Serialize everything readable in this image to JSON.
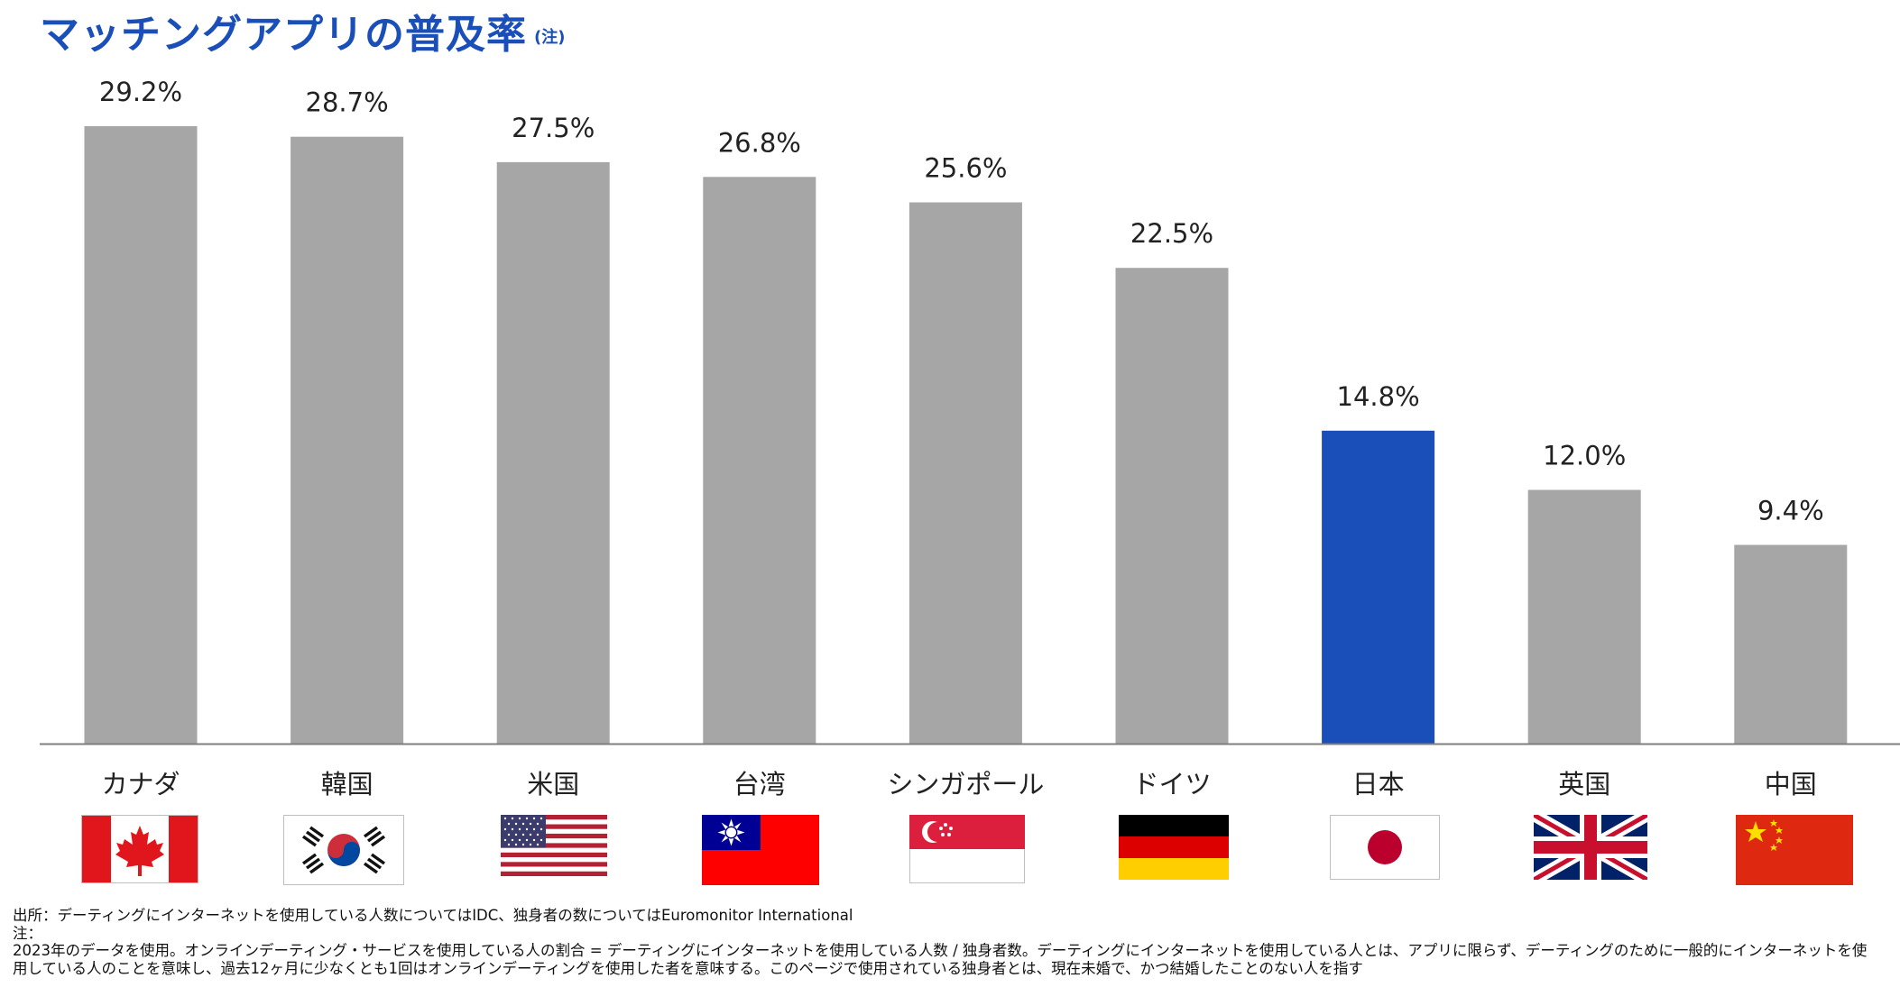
{
  "title": "マッチングアプリの普及率",
  "title_note": "(注)",
  "highlight_color": "#1a4fba",
  "bar_color": "#a6a6a6",
  "chart_data": {
    "type": "bar",
    "title": "マッチングアプリの普及率",
    "categories": [
      "カナダ",
      "韓国",
      "米国",
      "台湾",
      "シンガポール",
      "ドイツ",
      "日本",
      "英国",
      "中国"
    ],
    "values": [
      29.2,
      28.7,
      27.5,
      26.8,
      25.6,
      22.5,
      14.8,
      12.0,
      9.4
    ],
    "value_labels": [
      "29.2%",
      "28.7%",
      "27.5%",
      "26.8%",
      "25.6%",
      "22.5%",
      "14.8%",
      "12.0%",
      "9.4%"
    ],
    "highlight_category": "日本",
    "ylim": [
      0,
      29.2
    ],
    "grid": false,
    "xlabel": "",
    "ylabel": ""
  },
  "flags": [
    {
      "country": "カナダ",
      "icon": "canada-flag-icon"
    },
    {
      "country": "韓国",
      "icon": "south-korea-flag-icon"
    },
    {
      "country": "米国",
      "icon": "usa-flag-icon"
    },
    {
      "country": "台湾",
      "icon": "taiwan-flag-icon"
    },
    {
      "country": "シンガポール",
      "icon": "singapore-flag-icon"
    },
    {
      "country": "ドイツ",
      "icon": "germany-flag-icon"
    },
    {
      "country": "日本",
      "icon": "japan-flag-icon"
    },
    {
      "country": "英国",
      "icon": "uk-flag-icon"
    },
    {
      "country": "中国",
      "icon": "china-flag-icon"
    }
  ],
  "footnotes": {
    "source": "出所：デーティングにインターネットを使用している人数についてはIDC、独身者の数についてはEuromonitor International",
    "note_label": "注：",
    "note_line1": "2023年のデータを使用。オンラインデーティング・サービスを使用している人の割合 = デーティングにインターネットを使用している人数 / 独身者数。デーティングにインターネットを使用している人とは、アプリに限らず、デーティングのために一般的にインターネットを使",
    "note_line2": "用している人のことを意味し、過去12ヶ月に少なくとも1回はオンラインデーティングを使用した者を意味する。このページで使用されている独身者とは、現在未婚で、かつ結婚したことのない人を指す"
  }
}
